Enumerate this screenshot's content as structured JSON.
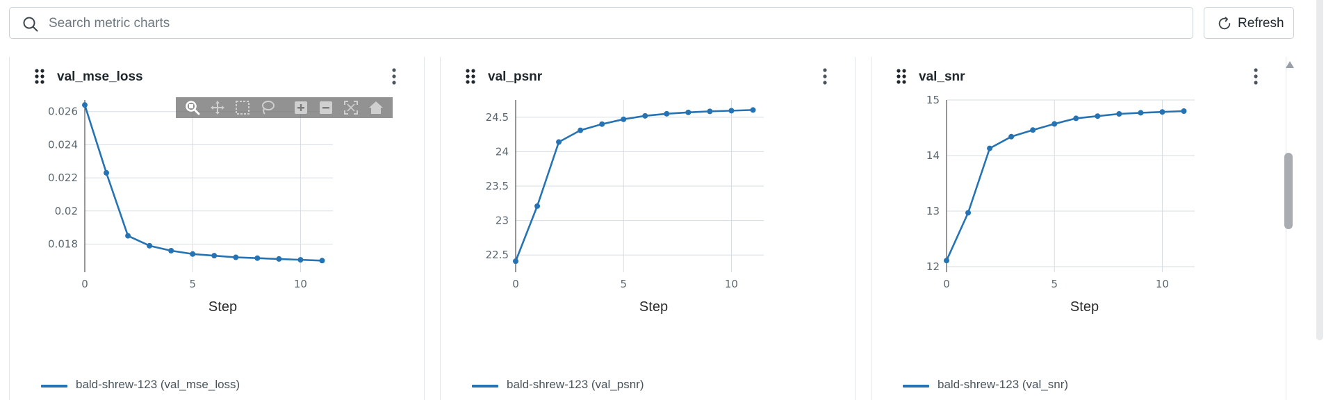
{
  "search": {
    "placeholder": "Search metric charts",
    "value": ""
  },
  "toolbar": {
    "refresh_label": "Refresh"
  },
  "colors": {
    "series": "#2673b3",
    "grid": "#d6dde3",
    "axis": "#2f2f2f",
    "tick_text": "#5b6770"
  },
  "modebar": {
    "tools": [
      "zoom-icon",
      "pan-icon",
      "box-select-icon",
      "lasso-select-icon",
      "zoom-in-icon",
      "zoom-out-icon",
      "autoscale-icon",
      "reset-axes-icon"
    ]
  },
  "cards": [
    {
      "title": "val_mse_loss",
      "legend": "bald-shrew-123 (val_mse_loss)"
    },
    {
      "title": "val_psnr",
      "legend": "bald-shrew-123 (val_psnr)"
    },
    {
      "title": "val_snr",
      "legend": "bald-shrew-123 (val_snr)"
    }
  ],
  "chart_data": [
    {
      "type": "line",
      "title": "val_mse_loss",
      "xlabel": "Step",
      "ylabel": "",
      "x": [
        0,
        1,
        2,
        3,
        4,
        5,
        6,
        7,
        8,
        9,
        10,
        11
      ],
      "series": [
        {
          "name": "bald-shrew-123 (val_mse_loss)",
          "values": [
            0.0264,
            0.0223,
            0.0185,
            0.0179,
            0.0176,
            0.0174,
            0.0173,
            0.0172,
            0.01715,
            0.0171,
            0.01705,
            0.017
          ]
        }
      ],
      "xlim": [
        0,
        11.5
      ],
      "ylim": [
        0.0163,
        0.0267
      ],
      "xticks": [
        0,
        5,
        10
      ],
      "xtick_labels": [
        "0",
        "5",
        "10"
      ],
      "yticks": [
        0.018,
        0.02,
        0.022,
        0.024,
        0.026
      ],
      "ytick_labels": [
        "0.018",
        "0.02",
        "0.022",
        "0.024",
        "0.026"
      ],
      "grid": true,
      "legend": "bottom-left"
    },
    {
      "type": "line",
      "title": "val_psnr",
      "xlabel": "Step",
      "ylabel": "",
      "x": [
        0,
        1,
        2,
        3,
        4,
        5,
        6,
        7,
        8,
        9,
        10,
        11
      ],
      "series": [
        {
          "name": "bald-shrew-123 (val_psnr)",
          "values": [
            22.41,
            23.21,
            24.14,
            24.31,
            24.4,
            24.47,
            24.52,
            24.55,
            24.57,
            24.585,
            24.595,
            24.605
          ]
        }
      ],
      "xlim": [
        0,
        11.5
      ],
      "ylim": [
        22.25,
        24.75
      ],
      "xticks": [
        0,
        5,
        10
      ],
      "xtick_labels": [
        "0",
        "5",
        "10"
      ],
      "yticks": [
        22.5,
        23,
        23.5,
        24,
        24.5
      ],
      "ytick_labels": [
        "22.5",
        "23",
        "23.5",
        "24",
        "24.5"
      ],
      "grid": true,
      "legend": "bottom-left"
    },
    {
      "type": "line",
      "title": "val_snr",
      "xlabel": "Step",
      "ylabel": "",
      "x": [
        0,
        1,
        2,
        3,
        4,
        5,
        6,
        7,
        8,
        9,
        10,
        11
      ],
      "series": [
        {
          "name": "bald-shrew-123 (val_snr)",
          "values": [
            12.11,
            12.97,
            14.13,
            14.34,
            14.46,
            14.57,
            14.67,
            14.71,
            14.75,
            14.77,
            14.785,
            14.8
          ]
        }
      ],
      "xlim": [
        0,
        11.5
      ],
      "ylim": [
        11.9,
        15
      ],
      "xticks": [
        0,
        5,
        10
      ],
      "xtick_labels": [
        "0",
        "5",
        "10"
      ],
      "yticks": [
        12,
        13,
        14,
        15
      ],
      "ytick_labels": [
        "12",
        "13",
        "14",
        "15"
      ],
      "grid": true,
      "legend": "bottom-left"
    }
  ]
}
